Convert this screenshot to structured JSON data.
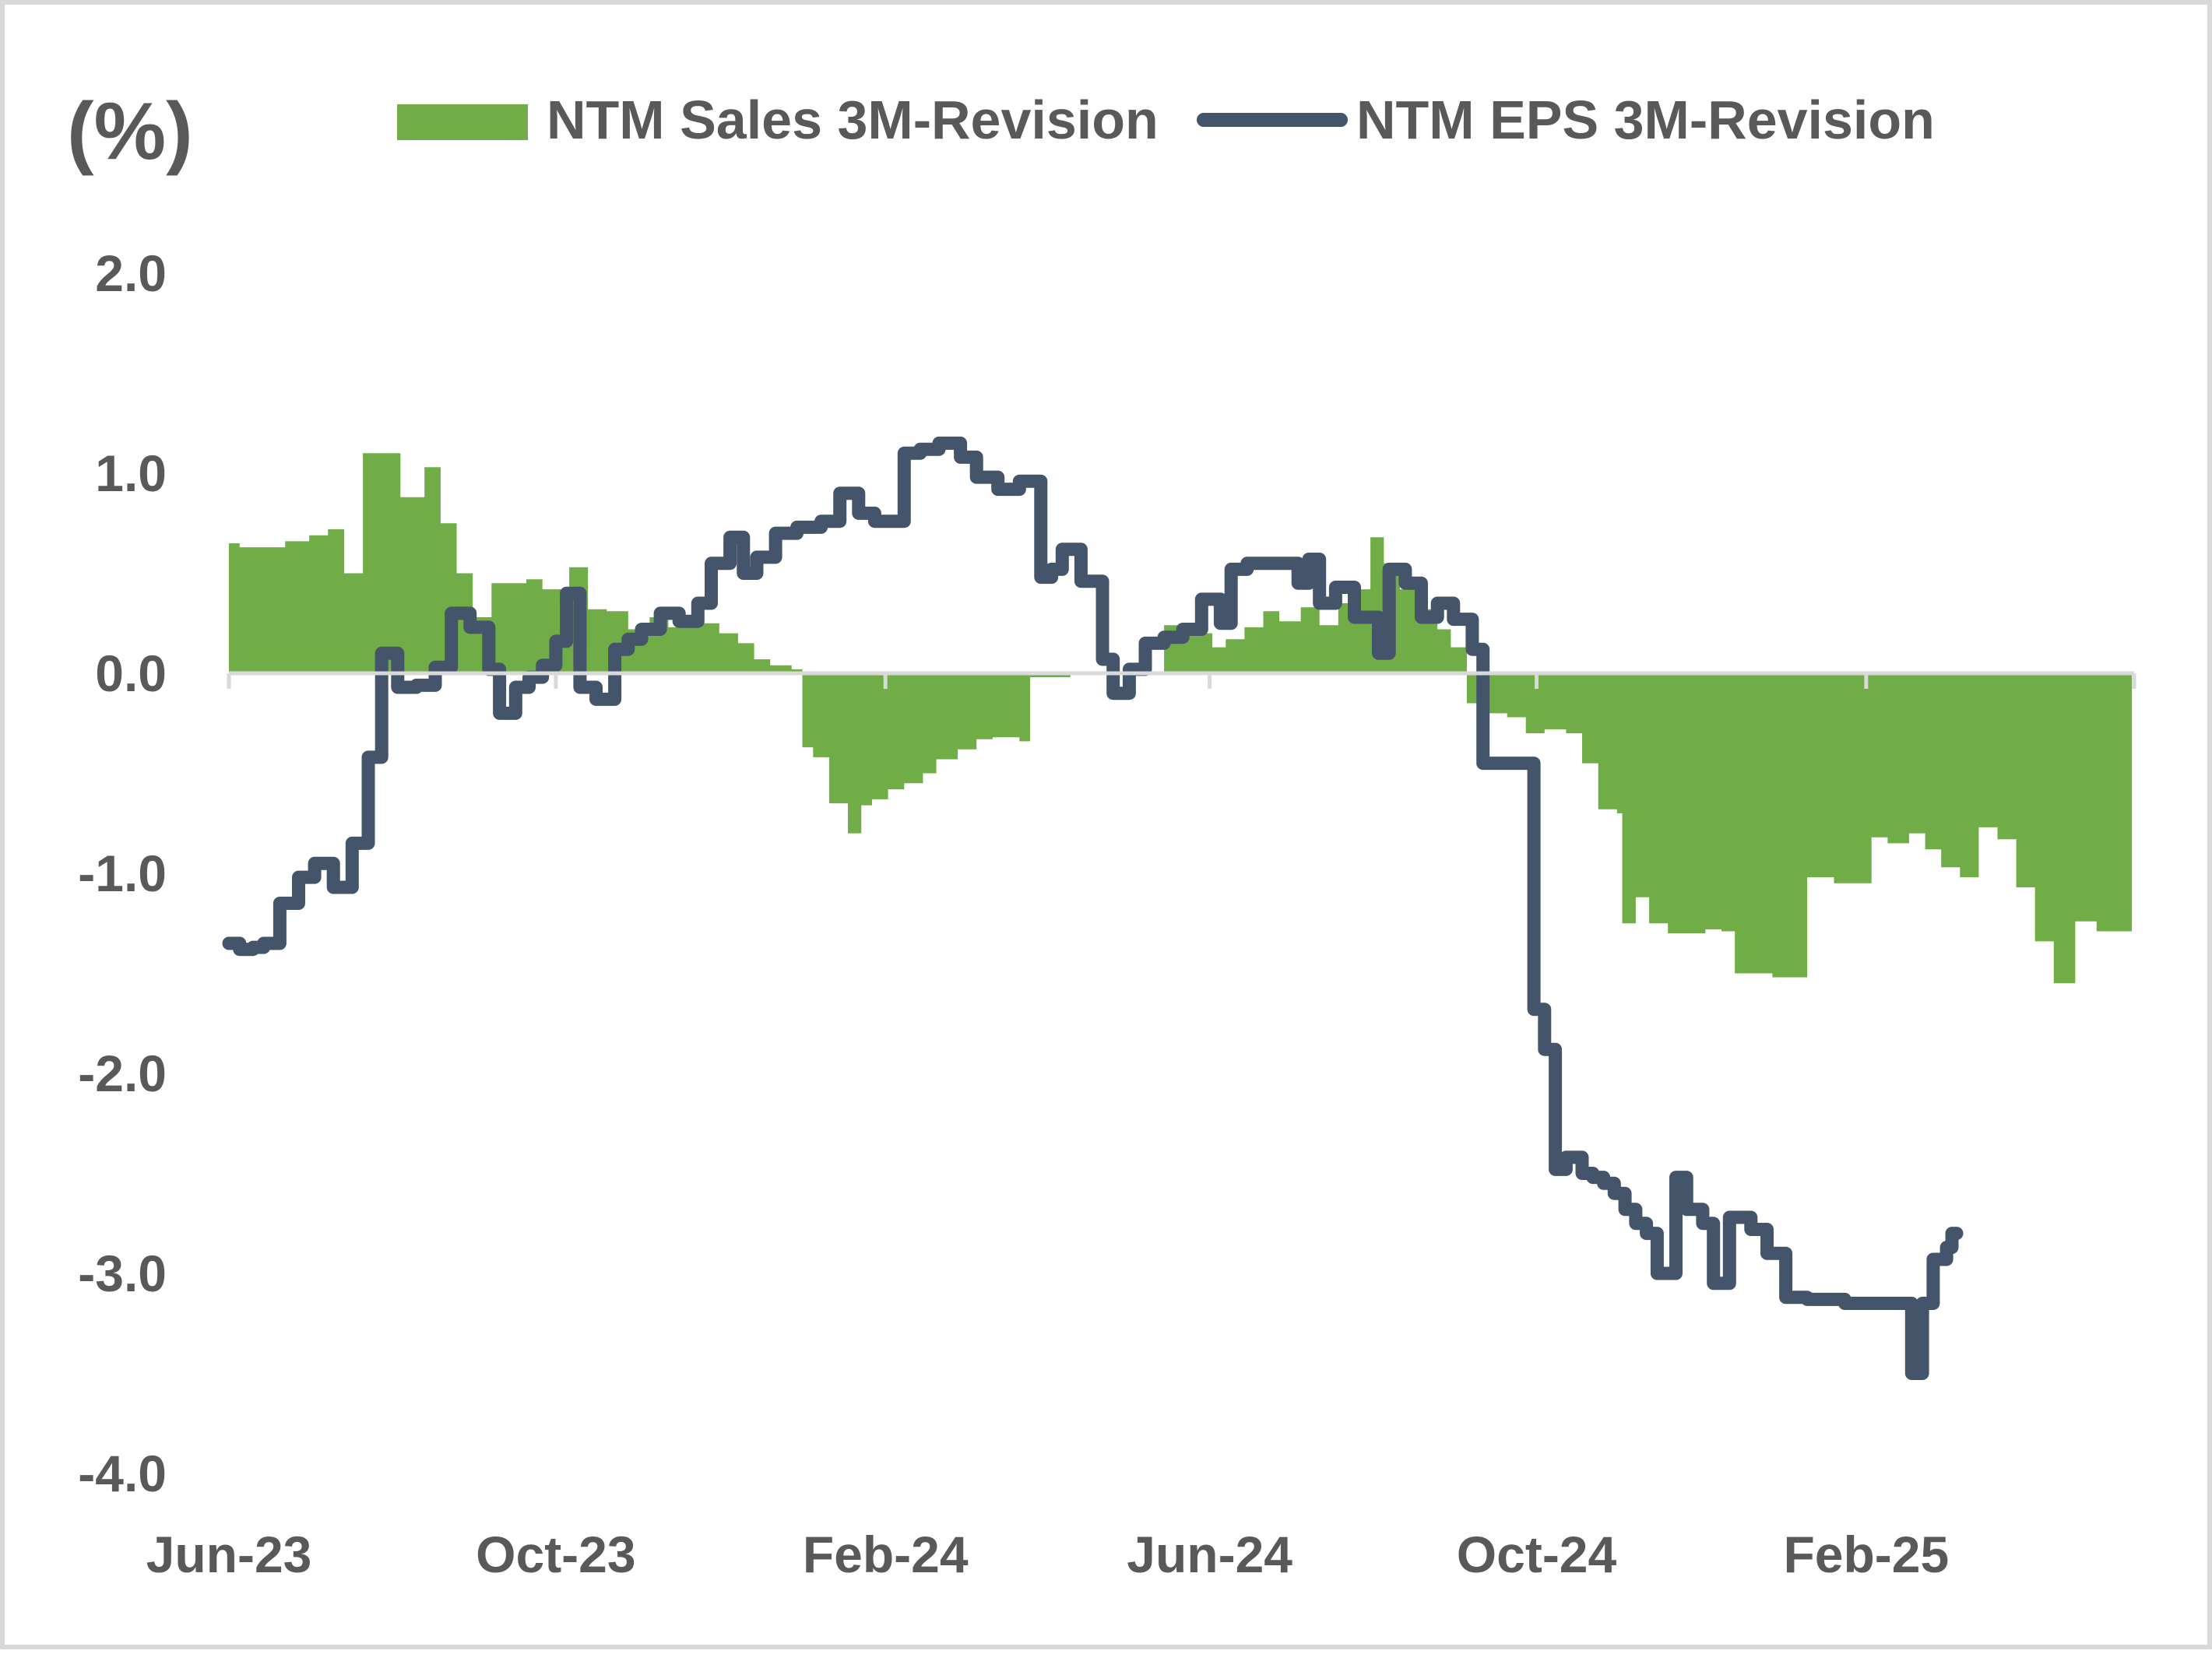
{
  "chart_data": {
    "type": "area+line",
    "y_unit_label": "(%)",
    "ylim": [
      -4.0,
      2.0
    ],
    "y_ticks": [
      "2.0",
      "1.0",
      "0.0",
      "-1.0",
      "-2.0",
      "-3.0",
      "-4.0"
    ],
    "y_tick_values": [
      2.0,
      1.0,
      0.0,
      -1.0,
      -2.0,
      -3.0,
      -4.0
    ],
    "x_range": [
      "2023-06-01",
      "2025-05-12"
    ],
    "x_ticks": [
      "Jun-23",
      "Oct-23",
      "Feb-24",
      "Jun-24",
      "Oct-24",
      "Feb-25"
    ],
    "x_tick_dates": [
      "2023-06-01",
      "2023-10-01",
      "2024-02-01",
      "2024-06-01",
      "2024-10-01",
      "2025-02-01"
    ],
    "legend_position": "top",
    "grid": false,
    "colors": {
      "sales": "#70ad47",
      "eps": "#44546a",
      "axis": "#d9d9d9",
      "text": "#595959"
    },
    "series": [
      {
        "name": "NTM Sales 3M-Revision",
        "type": "area",
        "points": [
          [
            "2023-06-01",
            0.65
          ],
          [
            "2023-06-05",
            0.63
          ],
          [
            "2023-06-20",
            0.63
          ],
          [
            "2023-06-22",
            0.66
          ],
          [
            "2023-07-01",
            0.69
          ],
          [
            "2023-07-08",
            0.72
          ],
          [
            "2023-07-14",
            0.5
          ],
          [
            "2023-07-21",
            1.1
          ],
          [
            "2023-08-01",
            1.1
          ],
          [
            "2023-08-04",
            0.88
          ],
          [
            "2023-08-10",
            0.88
          ],
          [
            "2023-08-13",
            1.03
          ],
          [
            "2023-08-19",
            0.75
          ],
          [
            "2023-08-25",
            0.5
          ],
          [
            "2023-08-31",
            0.28
          ],
          [
            "2023-09-07",
            0.45
          ],
          [
            "2023-09-20",
            0.47
          ],
          [
            "2023-09-26",
            0.42
          ],
          [
            "2023-10-06",
            0.53
          ],
          [
            "2023-10-13",
            0.32
          ],
          [
            "2023-10-20",
            0.31
          ],
          [
            "2023-10-28",
            0.22
          ],
          [
            "2023-11-05",
            0.28
          ],
          [
            "2023-11-12",
            0.23
          ],
          [
            "2023-11-20",
            0.25
          ],
          [
            "2023-12-01",
            0.2
          ],
          [
            "2023-12-08",
            0.15
          ],
          [
            "2023-12-14",
            0.07
          ],
          [
            "2023-12-20",
            0.04
          ],
          [
            "2023-12-28",
            0.02
          ],
          [
            "2024-01-01",
            -0.37
          ],
          [
            "2024-01-05",
            -0.42
          ],
          [
            "2024-01-11",
            -0.65
          ],
          [
            "2024-01-18",
            -0.8
          ],
          [
            "2024-01-23",
            -0.66
          ],
          [
            "2024-01-27",
            -0.63
          ],
          [
            "2024-02-02",
            -0.58
          ],
          [
            "2024-02-08",
            -0.55
          ],
          [
            "2024-02-15",
            -0.5
          ],
          [
            "2024-02-20",
            -0.43
          ],
          [
            "2024-02-28",
            -0.38
          ],
          [
            "2024-03-06",
            -0.33
          ],
          [
            "2024-03-12",
            -0.32
          ],
          [
            "2024-03-22",
            -0.34
          ],
          [
            "2024-03-26",
            -0.02
          ],
          [
            "2024-04-10",
            0.0
          ],
          [
            "2024-05-15",
            0.24
          ],
          [
            "2024-05-21",
            0.22
          ],
          [
            "2024-05-27",
            0.2
          ],
          [
            "2024-06-02",
            0.13
          ],
          [
            "2024-06-07",
            0.17
          ],
          [
            "2024-06-14",
            0.23
          ],
          [
            "2024-06-21",
            0.31
          ],
          [
            "2024-06-27",
            0.26
          ],
          [
            "2024-07-05",
            0.33
          ],
          [
            "2024-07-12",
            0.24
          ],
          [
            "2024-07-19",
            0.35
          ],
          [
            "2024-07-26",
            0.42
          ],
          [
            "2024-07-31",
            0.68
          ],
          [
            "2024-08-05",
            0.55
          ],
          [
            "2024-08-11",
            0.42
          ],
          [
            "2024-08-18",
            0.32
          ],
          [
            "2024-08-25",
            0.22
          ],
          [
            "2024-08-30",
            0.13
          ],
          [
            "2024-09-05",
            -0.15
          ],
          [
            "2024-09-12",
            -0.2
          ],
          [
            "2024-09-20",
            -0.22
          ],
          [
            "2024-09-27",
            -0.3
          ],
          [
            "2024-10-04",
            -0.28
          ],
          [
            "2024-10-12",
            -0.3
          ],
          [
            "2024-10-18",
            -0.45
          ],
          [
            "2024-10-24",
            -0.68
          ],
          [
            "2024-10-31",
            -0.7
          ],
          [
            "2024-11-02",
            -1.25
          ],
          [
            "2024-11-07",
            -1.12
          ],
          [
            "2024-11-12",
            -1.25
          ],
          [
            "2024-11-19",
            -1.3
          ],
          [
            "2024-12-03",
            -1.28
          ],
          [
            "2024-12-09",
            -1.29
          ],
          [
            "2024-12-14",
            -1.5
          ],
          [
            "2024-12-28",
            -1.52
          ],
          [
            "2025-01-10",
            -1.02
          ],
          [
            "2025-01-20",
            -1.05
          ],
          [
            "2025-02-03",
            -0.82
          ],
          [
            "2025-02-09",
            -0.85
          ],
          [
            "2025-02-17",
            -0.8
          ],
          [
            "2025-02-23",
            -0.88
          ],
          [
            "2025-03-01",
            -0.97
          ],
          [
            "2025-03-08",
            -1.02
          ],
          [
            "2025-03-15",
            -0.77
          ],
          [
            "2025-03-22",
            -0.83
          ],
          [
            "2025-03-29",
            -1.07
          ],
          [
            "2025-04-05",
            -1.34
          ],
          [
            "2025-04-12",
            -1.55
          ],
          [
            "2025-04-20",
            -1.24
          ],
          [
            "2025-04-28",
            -1.29
          ],
          [
            "2025-05-10",
            -1.29
          ]
        ]
      },
      {
        "name": "NTM EPS 3M-Revision",
        "type": "line",
        "points": [
          [
            "2023-06-01",
            -1.35
          ],
          [
            "2023-06-05",
            -1.38
          ],
          [
            "2023-06-10",
            -1.37
          ],
          [
            "2023-06-14",
            -1.35
          ],
          [
            "2023-06-20",
            -1.15
          ],
          [
            "2023-06-27",
            -1.02
          ],
          [
            "2023-07-03",
            -0.95
          ],
          [
            "2023-07-10",
            -1.07
          ],
          [
            "2023-07-17",
            -0.85
          ],
          [
            "2023-07-23",
            -0.42
          ],
          [
            "2023-07-28",
            0.1
          ],
          [
            "2023-08-01",
            0.1
          ],
          [
            "2023-08-03",
            -0.07
          ],
          [
            "2023-08-08",
            -0.07
          ],
          [
            "2023-08-10",
            -0.06
          ],
          [
            "2023-08-17",
            0.03
          ],
          [
            "2023-08-23",
            0.3
          ],
          [
            "2023-08-30",
            0.23
          ],
          [
            "2023-09-06",
            0.02
          ],
          [
            "2023-09-10",
            -0.2
          ],
          [
            "2023-09-16",
            -0.07
          ],
          [
            "2023-09-21",
            -0.02
          ],
          [
            "2023-09-26",
            0.04
          ],
          [
            "2023-10-01",
            0.16
          ],
          [
            "2023-10-05",
            0.4
          ],
          [
            "2023-10-10",
            -0.07
          ],
          [
            "2023-10-16",
            -0.13
          ],
          [
            "2023-10-23",
            0.12
          ],
          [
            "2023-10-28",
            0.17
          ],
          [
            "2023-11-02",
            0.22
          ],
          [
            "2023-11-09",
            0.3
          ],
          [
            "2023-11-16",
            0.26
          ],
          [
            "2023-11-23",
            0.35
          ],
          [
            "2023-11-28",
            0.55
          ],
          [
            "2023-12-05",
            0.68
          ],
          [
            "2023-12-10",
            0.5
          ],
          [
            "2023-12-15",
            0.58
          ],
          [
            "2023-12-22",
            0.7
          ],
          [
            "2023-12-30",
            0.73
          ],
          [
            "2024-01-08",
            0.76
          ],
          [
            "2024-01-15",
            0.9
          ],
          [
            "2024-01-22",
            0.8
          ],
          [
            "2024-01-28",
            0.76
          ],
          [
            "2024-02-08",
            1.1
          ],
          [
            "2024-02-14",
            1.12
          ],
          [
            "2024-02-21",
            1.15
          ],
          [
            "2024-02-29",
            1.08
          ],
          [
            "2024-03-06",
            0.98
          ],
          [
            "2024-03-14",
            0.92
          ],
          [
            "2024-03-22",
            0.96
          ],
          [
            "2024-03-30",
            0.48
          ],
          [
            "2024-04-03",
            0.52
          ],
          [
            "2024-04-07",
            0.62
          ],
          [
            "2024-04-14",
            0.46
          ],
          [
            "2024-04-22",
            0.07
          ],
          [
            "2024-04-26",
            -0.1
          ],
          [
            "2024-05-02",
            0.02
          ],
          [
            "2024-05-08",
            0.15
          ],
          [
            "2024-05-15",
            0.18
          ],
          [
            "2024-05-22",
            0.22
          ],
          [
            "2024-05-29",
            0.37
          ],
          [
            "2024-06-05",
            0.25
          ],
          [
            "2024-06-09",
            0.52
          ],
          [
            "2024-06-15",
            0.55
          ],
          [
            "2024-06-28",
            0.55
          ],
          [
            "2024-07-04",
            0.45
          ],
          [
            "2024-07-08",
            0.57
          ],
          [
            "2024-07-12",
            0.35
          ],
          [
            "2024-07-18",
            0.43
          ],
          [
            "2024-07-25",
            0.28
          ],
          [
            "2024-08-03",
            0.1
          ],
          [
            "2024-08-07",
            0.52
          ],
          [
            "2024-08-13",
            0.45
          ],
          [
            "2024-08-19",
            0.28
          ],
          [
            "2024-08-25",
            0.35
          ],
          [
            "2024-08-31",
            0.27
          ],
          [
            "2024-09-07",
            0.12
          ],
          [
            "2024-09-11",
            -0.45
          ],
          [
            "2024-09-25",
            -0.45
          ],
          [
            "2024-09-30",
            -1.68
          ],
          [
            "2024-10-04",
            -1.88
          ],
          [
            "2024-10-08",
            -2.48
          ],
          [
            "2024-10-12",
            -2.42
          ],
          [
            "2024-10-18",
            -2.5
          ],
          [
            "2024-10-22",
            -2.52
          ],
          [
            "2024-10-26",
            -2.55
          ],
          [
            "2024-10-30",
            -2.6
          ],
          [
            "2024-11-03",
            -2.68
          ],
          [
            "2024-11-07",
            -2.75
          ],
          [
            "2024-11-11",
            -2.8
          ],
          [
            "2024-11-15",
            -3.0
          ],
          [
            "2024-11-22",
            -2.52
          ],
          [
            "2024-11-26",
            -2.68
          ],
          [
            "2024-12-02",
            -2.75
          ],
          [
            "2024-12-06",
            -3.05
          ],
          [
            "2024-12-12",
            -2.72
          ],
          [
            "2024-12-20",
            -2.78
          ],
          [
            "2024-12-26",
            -2.9
          ],
          [
            "2025-01-02",
            -3.12
          ],
          [
            "2025-01-10",
            -3.13
          ],
          [
            "2025-01-24",
            -3.15
          ],
          [
            "2025-02-14",
            -3.15
          ],
          [
            "2025-02-18",
            -3.5
          ],
          [
            "2025-02-22",
            -3.15
          ],
          [
            "2025-02-26",
            -2.93
          ],
          [
            "2025-03-03",
            -2.87
          ],
          [
            "2025-03-05",
            -2.8
          ]
        ]
      }
    ]
  }
}
